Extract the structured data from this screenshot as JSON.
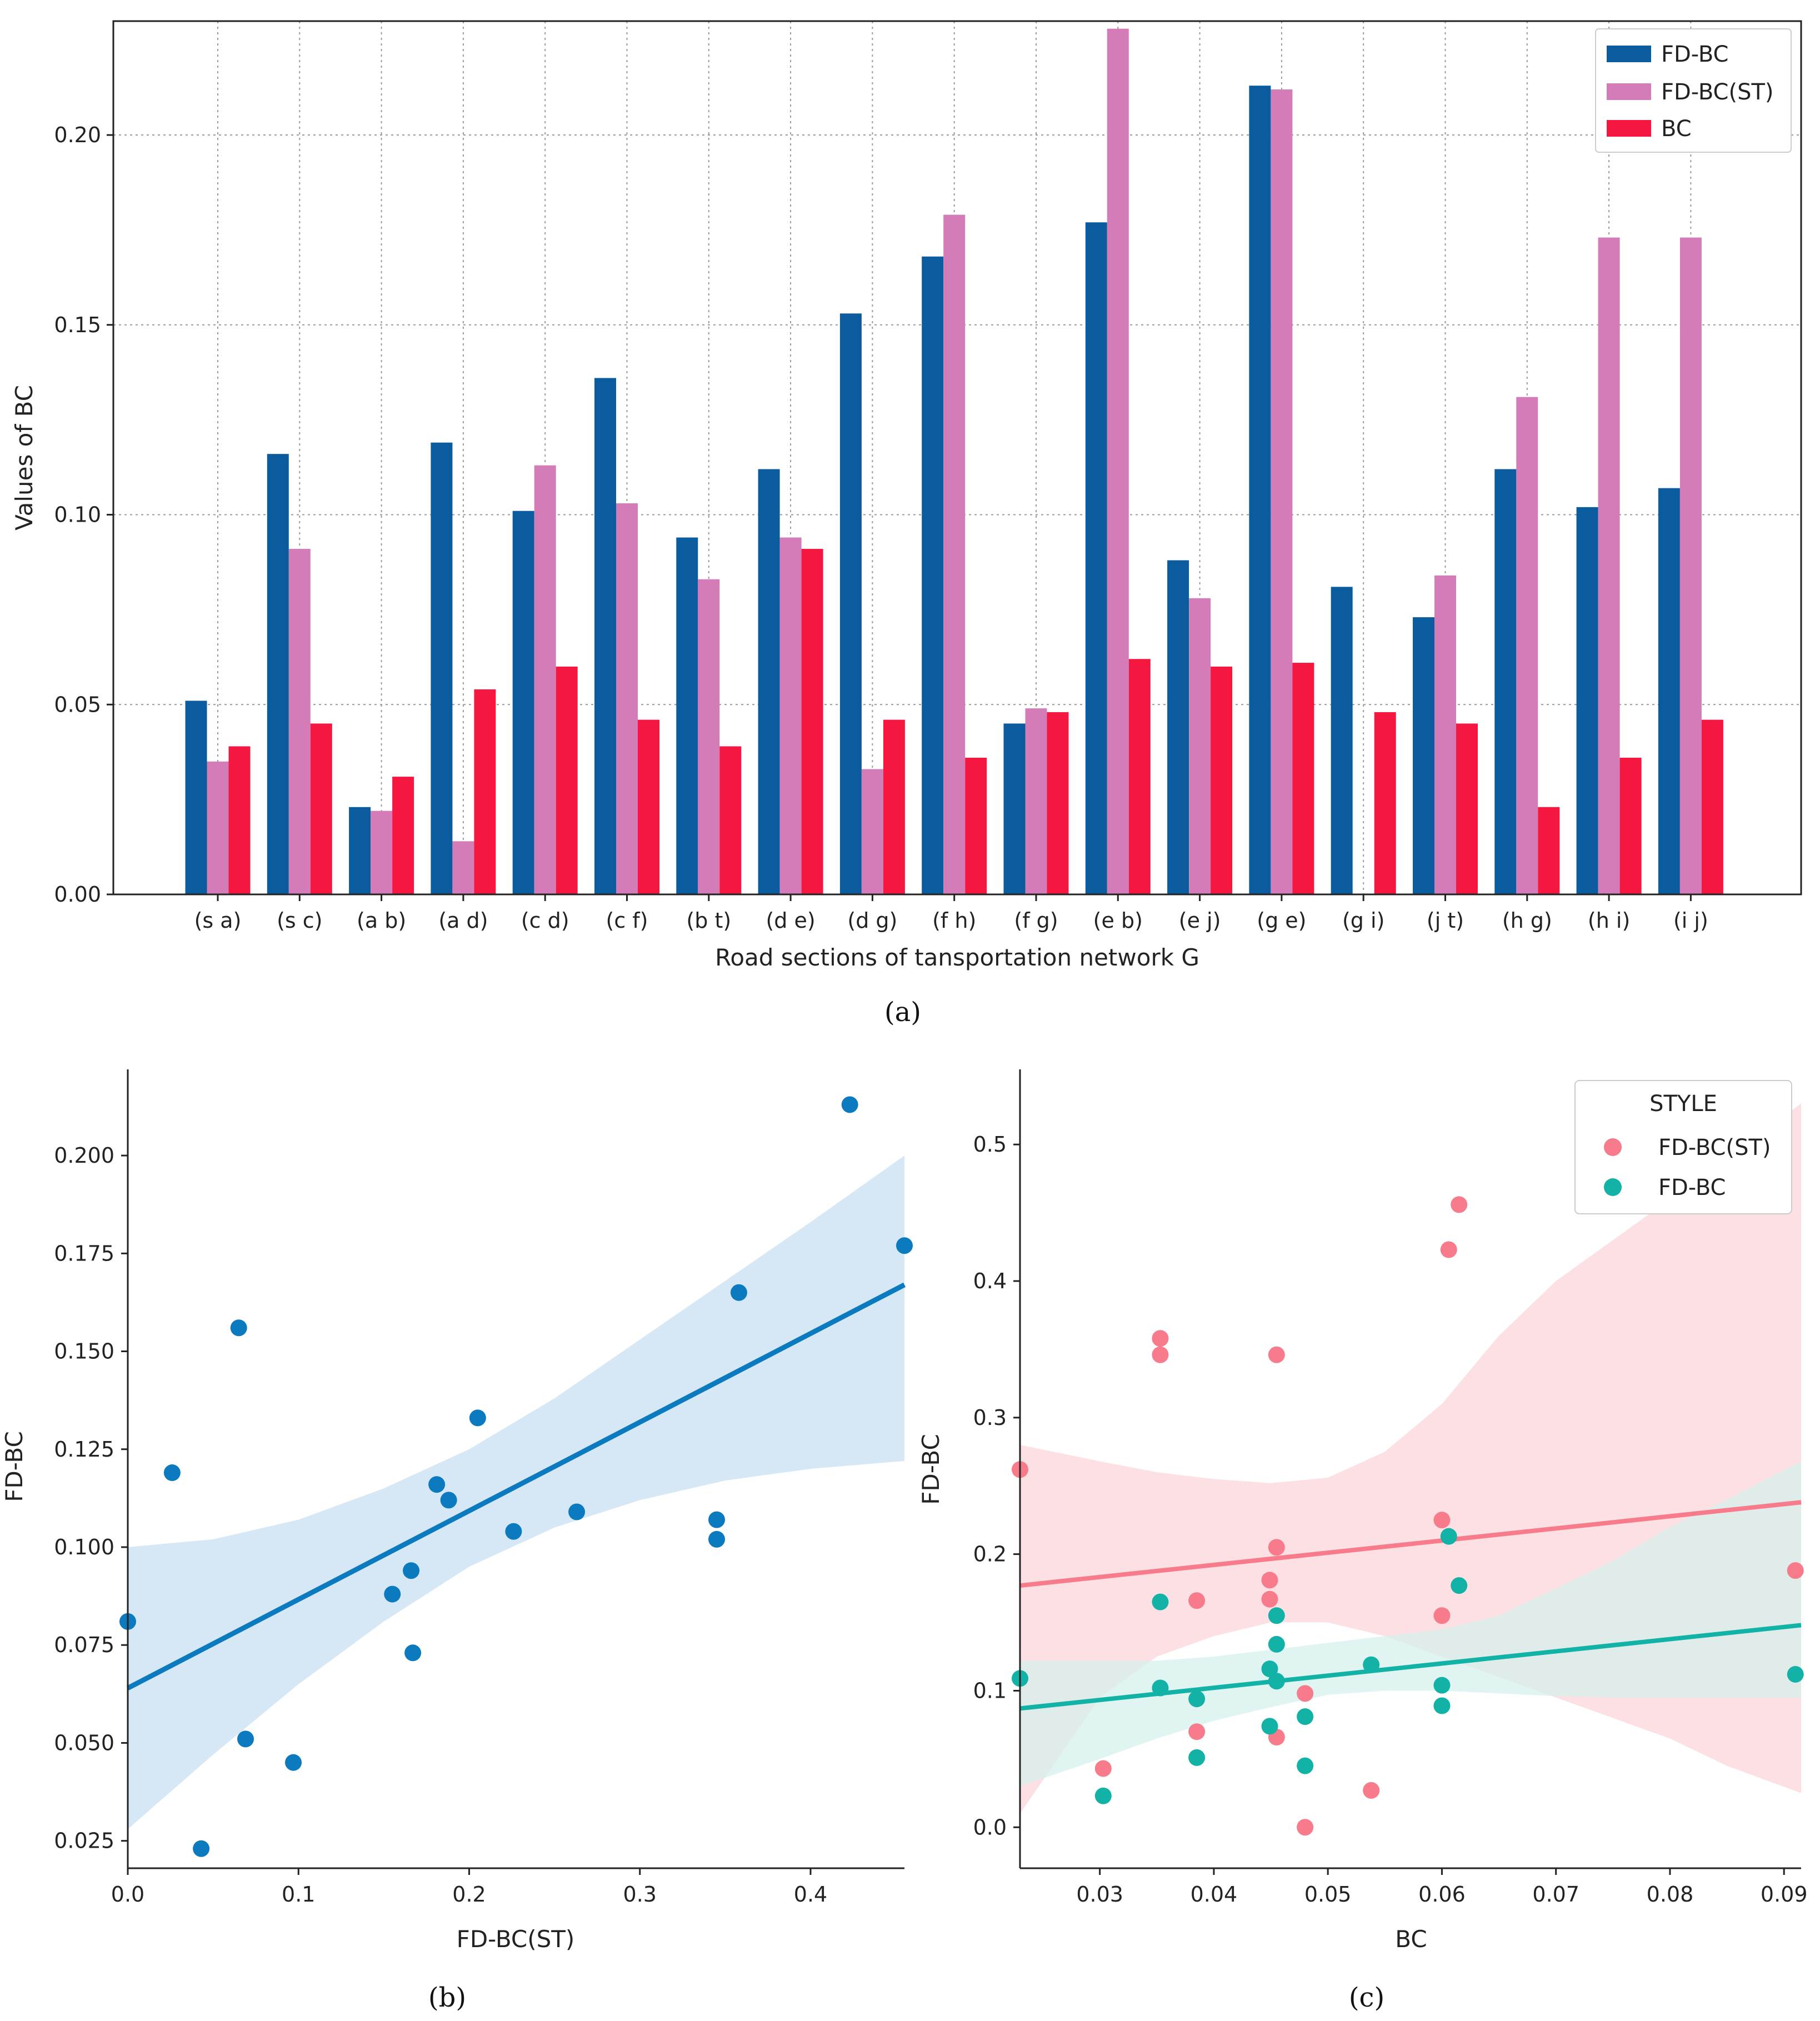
{
  "chart_data": [
    {
      "id": "a",
      "caption": "(a)",
      "type": "bar",
      "xlabel": "Road sections of tansportation network G",
      "ylabel": "Values of BC",
      "ylim": [
        0,
        0.23
      ],
      "yticks": [
        0.0,
        0.05,
        0.1,
        0.15,
        0.2
      ],
      "ytick_labels": [
        "0.00",
        "0.05",
        "0.10",
        "0.15",
        "0.20"
      ],
      "grid": true,
      "legend_position": "top-right",
      "categories": [
        "(s a)",
        "(s c)",
        "(a b)",
        "(a d)",
        "(c d)",
        "(c f)",
        "(b t)",
        "(d e)",
        "(d g)",
        "(f h)",
        "(f g)",
        "(e b)",
        "(e j)",
        "(g e)",
        "(g i)",
        "(j t)",
        "(h g)",
        "(h i)",
        "(i j)"
      ],
      "series": [
        {
          "name": "FD-BC",
          "color": "#0b5c9e",
          "values": [
            0.051,
            0.116,
            0.023,
            0.119,
            0.101,
            0.136,
            0.094,
            0.112,
            0.153,
            0.168,
            0.045,
            0.177,
            0.088,
            0.213,
            0.081,
            0.073,
            0.112,
            0.102,
            0.107
          ]
        },
        {
          "name": "FD-BC(ST)",
          "color": "#d47cb8",
          "values": [
            0.035,
            0.091,
            0.022,
            0.014,
            0.113,
            0.103,
            0.083,
            0.094,
            0.033,
            0.179,
            0.049,
            0.228,
            0.078,
            0.212,
            0.0,
            0.084,
            0.131,
            0.173,
            0.173
          ]
        },
        {
          "name": "BC",
          "color": "#f5173f",
          "values": [
            0.039,
            0.045,
            0.031,
            0.054,
            0.06,
            0.046,
            0.039,
            0.091,
            0.046,
            0.036,
            0.048,
            0.062,
            0.06,
            0.061,
            0.048,
            0.045,
            0.023,
            0.036,
            0.046
          ]
        }
      ]
    },
    {
      "id": "b",
      "caption": "(b)",
      "type": "scatter",
      "xlabel": "FD-BC(ST)",
      "ylabel": "FD-BC",
      "xlim": [
        0,
        0.455
      ],
      "ylim": [
        0.018,
        0.222
      ],
      "xticks": [
        0.0,
        0.1,
        0.2,
        0.3,
        0.4
      ],
      "xtick_labels": [
        "0.0",
        "0.1",
        "0.2",
        "0.3",
        "0.4"
      ],
      "yticks": [
        0.025,
        0.05,
        0.075,
        0.1,
        0.125,
        0.15,
        0.175,
        0.2
      ],
      "ytick_labels": [
        "0.025",
        "0.050",
        "0.075",
        "0.100",
        "0.125",
        "0.150",
        "0.175",
        "0.200"
      ],
      "color": "#0b7abf",
      "points": [
        [
          0.0,
          0.081
        ],
        [
          0.026,
          0.119
        ],
        [
          0.043,
          0.023
        ],
        [
          0.065,
          0.156
        ],
        [
          0.069,
          0.051
        ],
        [
          0.097,
          0.045
        ],
        [
          0.155,
          0.088
        ],
        [
          0.166,
          0.094
        ],
        [
          0.167,
          0.073
        ],
        [
          0.181,
          0.116
        ],
        [
          0.188,
          0.112
        ],
        [
          0.205,
          0.133
        ],
        [
          0.226,
          0.104
        ],
        [
          0.263,
          0.109
        ],
        [
          0.345,
          0.107
        ],
        [
          0.345,
          0.102
        ],
        [
          0.358,
          0.165
        ],
        [
          0.423,
          0.213
        ],
        [
          0.455,
          0.177
        ]
      ],
      "regression": {
        "x": [
          0.0,
          0.455
        ],
        "y": [
          0.064,
          0.167
        ]
      },
      "ci_upper": [
        [
          0.0,
          0.1
        ],
        [
          0.05,
          0.102
        ],
        [
          0.1,
          0.107
        ],
        [
          0.15,
          0.115
        ],
        [
          0.2,
          0.125
        ],
        [
          0.25,
          0.138
        ],
        [
          0.3,
          0.153
        ],
        [
          0.35,
          0.168
        ],
        [
          0.4,
          0.183
        ],
        [
          0.455,
          0.2
        ]
      ],
      "ci_lower": [
        [
          0.0,
          0.028
        ],
        [
          0.05,
          0.047
        ],
        [
          0.1,
          0.065
        ],
        [
          0.15,
          0.081
        ],
        [
          0.2,
          0.095
        ],
        [
          0.25,
          0.105
        ],
        [
          0.3,
          0.112
        ],
        [
          0.35,
          0.117
        ],
        [
          0.4,
          0.12
        ],
        [
          0.455,
          0.122
        ]
      ]
    },
    {
      "id": "c",
      "caption": "(c)",
      "type": "scatter",
      "xlabel": "BC",
      "ylabel": "FD-BC",
      "xlim": [
        0.023,
        0.0915
      ],
      "ylim": [
        -0.03,
        0.555
      ],
      "xticks": [
        0.03,
        0.04,
        0.05,
        0.06,
        0.07,
        0.08,
        0.09
      ],
      "xtick_labels": [
        "0.03",
        "0.04",
        "0.05",
        "0.06",
        "0.07",
        "0.08",
        "0.09"
      ],
      "yticks": [
        0.0,
        0.1,
        0.2,
        0.3,
        0.4,
        0.5
      ],
      "ytick_labels": [
        "0.0",
        "0.1",
        "0.2",
        "0.3",
        "0.4",
        "0.5"
      ],
      "legend_title": "STYLE",
      "legend_position": "top-right",
      "series": [
        {
          "name": "FD-BC(ST)",
          "color": "#f77b8b",
          "band_color": "#fde0e4",
          "points": [
            [
              0.023,
              0.262
            ],
            [
              0.0303,
              0.043
            ],
            [
              0.0353,
              0.358
            ],
            [
              0.0353,
              0.346
            ],
            [
              0.0385,
              0.166
            ],
            [
              0.0385,
              0.07
            ],
            [
              0.0449,
              0.181
            ],
            [
              0.0449,
              0.167
            ],
            [
              0.0455,
              0.205
            ],
            [
              0.0455,
              0.346
            ],
            [
              0.0455,
              0.066
            ],
            [
              0.048,
              0.098
            ],
            [
              0.048,
              0.0
            ],
            [
              0.0538,
              0.027
            ],
            [
              0.06,
              0.225
            ],
            [
              0.06,
              0.155
            ],
            [
              0.0606,
              0.423
            ],
            [
              0.0615,
              0.456
            ],
            [
              0.091,
              0.188
            ]
          ],
          "regression": {
            "x": [
              0.023,
              0.0915
            ],
            "y": [
              0.177,
              0.238
            ]
          },
          "ci_upper": [
            [
              0.023,
              0.28
            ],
            [
              0.03,
              0.268
            ],
            [
              0.035,
              0.26
            ],
            [
              0.04,
              0.255
            ],
            [
              0.045,
              0.252
            ],
            [
              0.05,
              0.256
            ],
            [
              0.055,
              0.275
            ],
            [
              0.06,
              0.31
            ],
            [
              0.065,
              0.36
            ],
            [
              0.07,
              0.4
            ],
            [
              0.075,
              0.43
            ],
            [
              0.08,
              0.46
            ],
            [
              0.085,
              0.49
            ],
            [
              0.0915,
              0.53
            ]
          ],
          "ci_lower": [
            [
              0.023,
              0.01
            ],
            [
              0.03,
              0.095
            ],
            [
              0.035,
              0.125
            ],
            [
              0.04,
              0.14
            ],
            [
              0.045,
              0.15
            ],
            [
              0.05,
              0.15
            ],
            [
              0.055,
              0.14
            ],
            [
              0.06,
              0.125
            ],
            [
              0.065,
              0.11
            ],
            [
              0.07,
              0.095
            ],
            [
              0.075,
              0.08
            ],
            [
              0.08,
              0.065
            ],
            [
              0.085,
              0.045
            ],
            [
              0.0915,
              0.025
            ]
          ]
        },
        {
          "name": "FD-BC",
          "color": "#12b3a6",
          "band_color": "#d5f0ec",
          "points": [
            [
              0.023,
              0.109
            ],
            [
              0.0303,
              0.023
            ],
            [
              0.0353,
              0.165
            ],
            [
              0.0353,
              0.102
            ],
            [
              0.0385,
              0.094
            ],
            [
              0.0385,
              0.051
            ],
            [
              0.0449,
              0.116
            ],
            [
              0.0449,
              0.074
            ],
            [
              0.0455,
              0.155
            ],
            [
              0.0455,
              0.134
            ],
            [
              0.0455,
              0.107
            ],
            [
              0.048,
              0.081
            ],
            [
              0.048,
              0.045
            ],
            [
              0.0538,
              0.119
            ],
            [
              0.06,
              0.104
            ],
            [
              0.06,
              0.089
            ],
            [
              0.0606,
              0.213
            ],
            [
              0.0615,
              0.177
            ],
            [
              0.091,
              0.112
            ]
          ],
          "regression": {
            "x": [
              0.023,
              0.0915
            ],
            "y": [
              0.087,
              0.148
            ]
          },
          "ci_upper": [
            [
              0.023,
              0.122
            ],
            [
              0.03,
              0.122
            ],
            [
              0.035,
              0.122
            ],
            [
              0.04,
              0.125
            ],
            [
              0.045,
              0.13
            ],
            [
              0.05,
              0.135
            ],
            [
              0.055,
              0.14
            ],
            [
              0.06,
              0.145
            ],
            [
              0.065,
              0.155
            ],
            [
              0.07,
              0.175
            ],
            [
              0.075,
              0.195
            ],
            [
              0.08,
              0.22
            ],
            [
              0.085,
              0.24
            ],
            [
              0.0915,
              0.268
            ]
          ],
          "ci_lower": [
            [
              0.023,
              0.03
            ],
            [
              0.03,
              0.05
            ],
            [
              0.035,
              0.065
            ],
            [
              0.04,
              0.078
            ],
            [
              0.045,
              0.088
            ],
            [
              0.05,
              0.097
            ],
            [
              0.055,
              0.1
            ],
            [
              0.06,
              0.1
            ],
            [
              0.065,
              0.098
            ],
            [
              0.07,
              0.096
            ],
            [
              0.075,
              0.095
            ],
            [
              0.08,
              0.095
            ],
            [
              0.085,
              0.095
            ],
            [
              0.0915,
              0.095
            ]
          ]
        }
      ]
    }
  ]
}
